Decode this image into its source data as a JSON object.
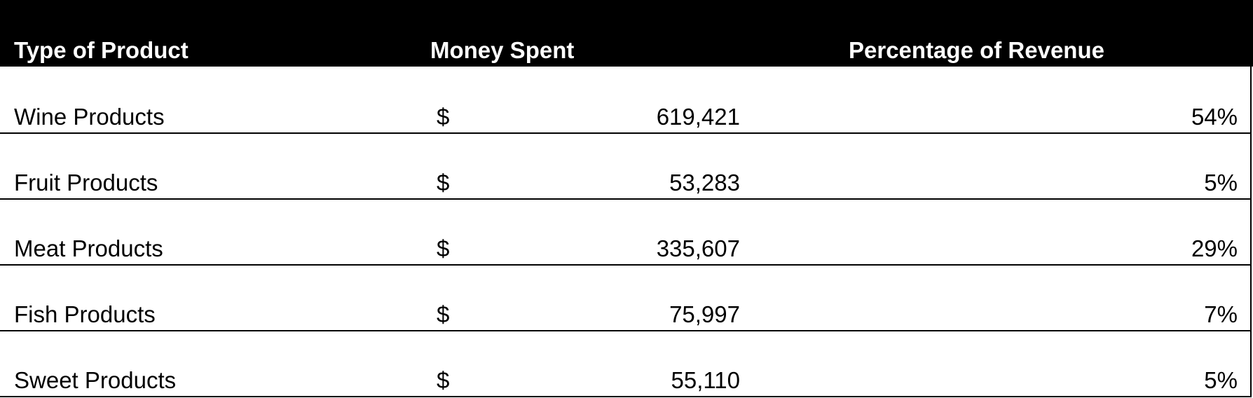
{
  "table": {
    "headers": {
      "type_of_product": "Type of Product",
      "money_spent": "Money Spent",
      "percentage_of_revenue": "Percentage of Revenue"
    },
    "currency_symbol": "$",
    "rows": [
      {
        "product": "Wine Products",
        "amount": "619,421",
        "percentage": "54%"
      },
      {
        "product": "Fruit Products",
        "amount": "53,283",
        "percentage": "5%"
      },
      {
        "product": "Meat Products",
        "amount": "335,607",
        "percentage": "29%"
      },
      {
        "product": "Fish Products",
        "amount": "75,997",
        "percentage": "7%"
      },
      {
        "product": "Sweet Products",
        "amount": "55,110",
        "percentage": "5%"
      }
    ]
  },
  "colors": {
    "header_background": "#000000",
    "header_text": "#ffffff",
    "body_text": "#000000",
    "grid_lines": "#000000"
  }
}
